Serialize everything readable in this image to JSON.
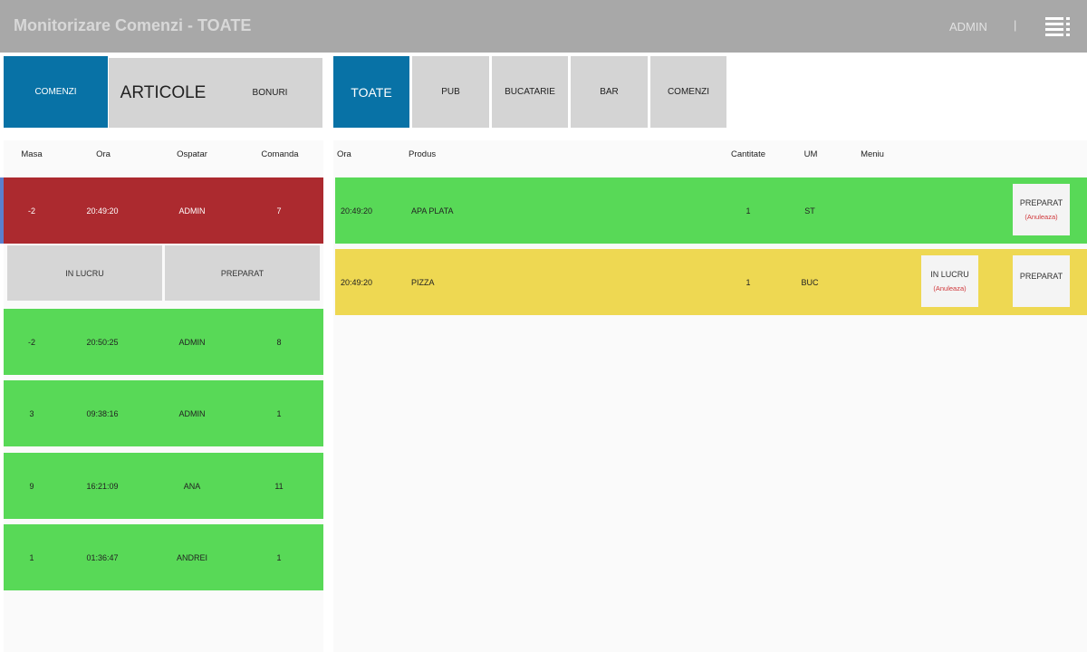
{
  "header": {
    "title": "Monitorizare Comenzi - TOATE",
    "user": "ADMIN",
    "separator": "|",
    "menu_icon": "hamburger-list-icon"
  },
  "view_tabs": [
    {
      "label": "COMENZI",
      "active": true
    },
    {
      "label": "ARTICOLE",
      "active": false
    },
    {
      "label": "BONURI",
      "active": false
    }
  ],
  "category_tabs": [
    {
      "label": "TOATE",
      "active": true
    },
    {
      "label": "PUB",
      "active": false
    },
    {
      "label": "BUCATARIE",
      "active": false
    },
    {
      "label": "BAR",
      "active": false
    },
    {
      "label": "COMENZI",
      "active": false
    }
  ],
  "orders": {
    "columns": [
      "Masa",
      "Ora",
      "Ospatar",
      "Comanda"
    ],
    "rows": [
      {
        "masa": "-2",
        "ora": "20:49:20",
        "ospatar": "ADMIN",
        "comanda": "7",
        "status": "selected",
        "color": "#ac2a2f"
      },
      {
        "masa": "-2",
        "ora": "20:50:25",
        "ospatar": "ADMIN",
        "comanda": "8",
        "status": "prepared",
        "color": "#58d957"
      },
      {
        "masa": "3",
        "ora": "09:38:16",
        "ospatar": "ADMIN",
        "comanda": "1",
        "status": "prepared",
        "color": "#58d957"
      },
      {
        "masa": "9",
        "ora": "16:21:09",
        "ospatar": "ANA",
        "comanda": "11",
        "status": "prepared",
        "color": "#58d957"
      },
      {
        "masa": "1",
        "ora": "01:36:47",
        "ospatar": "ANDREI",
        "comanda": "1",
        "status": "prepared",
        "color": "#58d957"
      }
    ],
    "actions": {
      "in_progress": "IN LUCRU",
      "prepared": "PREPARAT"
    }
  },
  "items": {
    "columns": [
      "Ora",
      "Produs",
      "Cantitate",
      "UM",
      "Meniu"
    ],
    "rows": [
      {
        "ora": "20:49:20",
        "produs": "APA PLATA",
        "cantitate": "1",
        "um": "ST",
        "color": "#58d957",
        "prepared_label": "PREPARAT",
        "prepared_undo": "(Anuleaza)"
      },
      {
        "ora": "20:49:20",
        "produs": "PIZZA",
        "cantitate": "1",
        "um": "BUC",
        "color": "#eed852",
        "in_progress_label": "IN LUCRU",
        "in_progress_undo": "(Anuleaza)",
        "prepared_label": "PREPARAT"
      }
    ]
  },
  "colors": {
    "topbar": "#a8a8a8",
    "accent": "#0872a6",
    "tab_inactive": "#d4d4d4",
    "ready": "#58d957",
    "in_progress": "#eed852",
    "selected": "#ac2a2f",
    "undo_text": "#d0383b"
  }
}
